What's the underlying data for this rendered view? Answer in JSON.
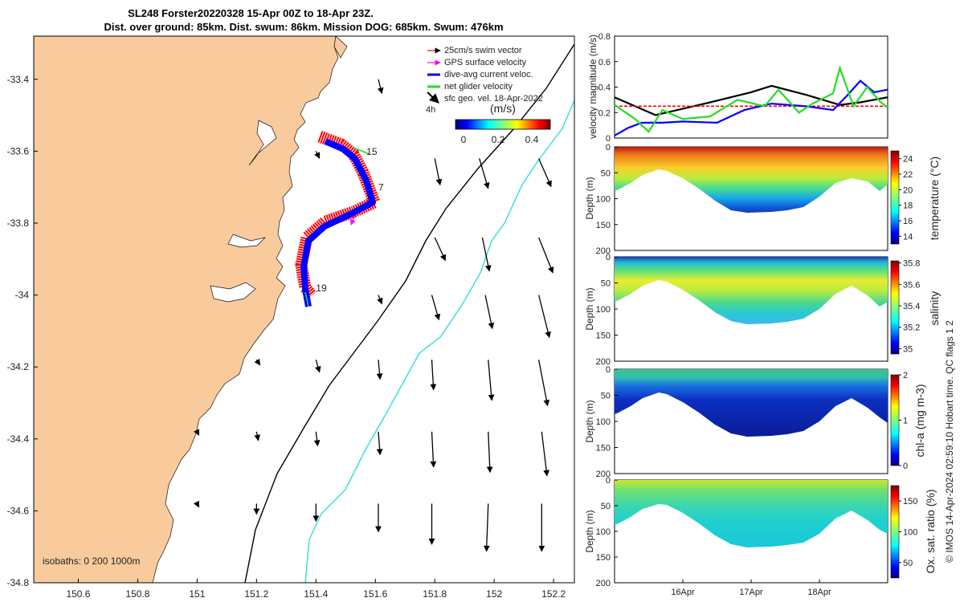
{
  "title": {
    "line1": "SL248 Forster20220328 15-Apr 00Z to 18-Apr 23Z.",
    "line2": "Dist. over ground: 85km. Dist. swum: 86km. Mission DOG: 685km. Swum: 476km"
  },
  "colors": {
    "land": "#f9cb9c",
    "swim": "#ff0000",
    "gps": "#ff00ff",
    "dive_avg": "#0000ff",
    "net": "#22dd22",
    "geo": "#000000",
    "isobath_200": "#000000",
    "isobath_1000": "#33dddd"
  },
  "chart_data": [
    {
      "type": "map",
      "name": "glider track map",
      "xlabel": "",
      "ylabel": "",
      "xlim": [
        150.45,
        152.27
      ],
      "ylim": [
        -34.8,
        -33.28
      ],
      "x_ticks": [
        150.6,
        150.8,
        151,
        151.2,
        151.4,
        151.6,
        151.8,
        152,
        152.2
      ],
      "x_tick_labels": [
        "150.6",
        "150.8",
        "151",
        "151.2",
        "151.4",
        "151.6",
        "151.8",
        "152",
        "152.2"
      ],
      "y_ticks": [
        -33.4,
        -33.6,
        -33.8,
        -34,
        -34.2,
        -34.4,
        -34.6,
        -34.8
      ],
      "y_tick_labels": [
        "-33.4",
        "-33.6",
        "-33.8",
        "-34",
        "-34.2",
        "-34.4",
        "-34.6",
        "-34.8"
      ],
      "legend": [
        "25cm/s swim vector",
        "GPS surface velocity",
        "dive-avg current veloc.",
        "net glider velocity",
        "sfc geo. vel. 18-Apr-2022"
      ],
      "legend_note": "4h",
      "colorbar": {
        "label": "(m/s)",
        "ticks": [
          "0",
          "0.2",
          "0.4"
        ],
        "range": [
          0,
          0.5
        ]
      },
      "isobaths_label": "isobaths: 0   200  1000m",
      "track": [
        [
          151.4,
          -33.57
        ],
        [
          151.45,
          -33.58
        ],
        [
          151.5,
          -33.6
        ],
        [
          151.55,
          -33.67
        ],
        [
          151.58,
          -33.74
        ],
        [
          151.5,
          -33.78
        ],
        [
          151.42,
          -33.82
        ],
        [
          151.36,
          -33.87
        ],
        [
          151.35,
          -33.93
        ],
        [
          151.37,
          -33.99
        ],
        [
          151.37,
          -34.02
        ]
      ],
      "track_labels": [
        {
          "text": "15",
          "lon": 151.57,
          "lat": -33.61
        },
        {
          "text": "7",
          "lon": 151.61,
          "lat": -33.71
        },
        {
          "text": "19",
          "lon": 151.4,
          "lat": -33.99
        }
      ],
      "gps_arrow": {
        "lon": 151.53,
        "lat": -33.78,
        "u": -0.02,
        "v": -0.05
      },
      "geo_vectors": [
        {
          "lon": 151.61,
          "lat": -33.4,
          "u": 0.02,
          "v": -0.08
        },
        {
          "lon": 151.4,
          "lat": -33.6,
          "u": 0.02,
          "v": -0.04
        },
        {
          "lon": 151.8,
          "lat": -33.62,
          "u": 0.03,
          "v": -0.15
        },
        {
          "lon": 151.95,
          "lat": -33.62,
          "u": 0.05,
          "v": -0.17
        },
        {
          "lon": 152.15,
          "lat": -33.62,
          "u": 0.07,
          "v": -0.16
        },
        {
          "lon": 151.8,
          "lat": -33.84,
          "u": 0.06,
          "v": -0.13
        },
        {
          "lon": 151.96,
          "lat": -33.84,
          "u": 0.04,
          "v": -0.19
        },
        {
          "lon": 152.15,
          "lat": -33.84,
          "u": 0.08,
          "v": -0.2
        },
        {
          "lon": 151.61,
          "lat": -34.0,
          "u": 0.02,
          "v": -0.05
        },
        {
          "lon": 151.79,
          "lat": -34.0,
          "u": 0.04,
          "v": -0.14
        },
        {
          "lon": 151.97,
          "lat": -34.0,
          "u": 0.04,
          "v": -0.19
        },
        {
          "lon": 152.15,
          "lat": -34.0,
          "u": 0.06,
          "v": -0.24
        },
        {
          "lon": 151.2,
          "lat": -34.18,
          "u": 0.02,
          "v": -0.03
        },
        {
          "lon": 151.4,
          "lat": -34.18,
          "u": 0.02,
          "v": -0.07
        },
        {
          "lon": 151.61,
          "lat": -34.18,
          "u": 0.01,
          "v": -0.11
        },
        {
          "lon": 151.79,
          "lat": -34.18,
          "u": 0.01,
          "v": -0.17
        },
        {
          "lon": 151.98,
          "lat": -34.18,
          "u": 0.02,
          "v": -0.23
        },
        {
          "lon": 152.15,
          "lat": -34.18,
          "u": 0.05,
          "v": -0.26
        },
        {
          "lon": 151.0,
          "lat": -34.38,
          "u": 0.01,
          "v": -0.02
        },
        {
          "lon": 151.2,
          "lat": -34.38,
          "u": 0.01,
          "v": -0.05
        },
        {
          "lon": 151.4,
          "lat": -34.38,
          "u": 0.01,
          "v": -0.08
        },
        {
          "lon": 151.61,
          "lat": -34.38,
          "u": 0.01,
          "v": -0.13
        },
        {
          "lon": 151.79,
          "lat": -34.38,
          "u": 0.01,
          "v": -0.2
        },
        {
          "lon": 151.98,
          "lat": -34.38,
          "u": 0.01,
          "v": -0.23
        },
        {
          "lon": 152.16,
          "lat": -34.38,
          "u": 0.03,
          "v": -0.25
        },
        {
          "lon": 151.0,
          "lat": -34.58,
          "u": 0.01,
          "v": -0.02
        },
        {
          "lon": 151.2,
          "lat": -34.58,
          "u": 0.0,
          "v": -0.06
        },
        {
          "lon": 151.4,
          "lat": -34.58,
          "u": 0.0,
          "v": -0.1
        },
        {
          "lon": 151.61,
          "lat": -34.58,
          "u": 0.0,
          "v": -0.16
        },
        {
          "lon": 151.79,
          "lat": -34.58,
          "u": 0.0,
          "v": -0.23
        },
        {
          "lon": 151.98,
          "lat": -34.58,
          "u": -0.01,
          "v": -0.27
        },
        {
          "lon": 152.16,
          "lat": -34.58,
          "u": 0.0,
          "v": -0.27
        }
      ]
    },
    {
      "type": "line",
      "name": "velocity magnitude",
      "ylabel": "velocity magnitude (m/s)",
      "ylim": [
        0,
        0.8
      ],
      "y_ticks": [
        "0",
        "0.2",
        "0.4",
        "0.6",
        "0.8"
      ],
      "xlim": [
        15.0,
        19.0
      ],
      "series": [
        {
          "name": "sfc geo",
          "color": "#000000",
          "x": [
            15.0,
            15.6,
            16.4,
            17.0,
            17.3,
            17.8,
            18.3,
            18.6,
            19.0
          ],
          "values": [
            0.32,
            0.18,
            0.28,
            0.36,
            0.41,
            0.34,
            0.26,
            0.28,
            0.32
          ]
        },
        {
          "name": "swim",
          "color": "#ff0000",
          "x": [
            15.0,
            19.0
          ],
          "values": [
            0.25,
            0.25
          ]
        },
        {
          "name": "dive-avg",
          "color": "#0000ff",
          "x": [
            15.0,
            15.2,
            15.4,
            15.7,
            16.0,
            16.5,
            16.9,
            17.3,
            17.8,
            18.2,
            18.4,
            18.6,
            18.8,
            19.0
          ],
          "values": [
            0.02,
            0.08,
            0.12,
            0.12,
            0.13,
            0.12,
            0.22,
            0.27,
            0.25,
            0.22,
            0.33,
            0.45,
            0.36,
            0.38
          ]
        },
        {
          "name": "net",
          "color": "#22dd22",
          "x": [
            15.0,
            15.3,
            15.5,
            15.7,
            16.0,
            16.4,
            16.8,
            17.2,
            17.4,
            17.7,
            17.9,
            18.2,
            18.3,
            18.5,
            18.7,
            18.9,
            19.0
          ],
          "values": [
            0.26,
            0.15,
            0.05,
            0.22,
            0.15,
            0.17,
            0.3,
            0.25,
            0.38,
            0.2,
            0.27,
            0.35,
            0.55,
            0.25,
            0.4,
            0.28,
            0.24
          ]
        }
      ]
    },
    {
      "type": "heatmap",
      "name": "temperature section",
      "ylabel": "Depth (m)",
      "ylim": [
        0,
        200
      ],
      "y_ticks": [
        "0",
        "50",
        "100",
        "150",
        "200"
      ],
      "colorbar_label": "temperature (°C)",
      "colorbar_ticks": [
        "14",
        "16",
        "18",
        "20",
        "22",
        "24"
      ],
      "colorbar_range": [
        13,
        25
      ]
    },
    {
      "type": "heatmap",
      "name": "salinity section",
      "ylabel": "Depth (m)",
      "ylim": [
        0,
        200
      ],
      "y_ticks": [
        "0",
        "50",
        "100",
        "150",
        "200"
      ],
      "colorbar_label": "salinity",
      "colorbar_ticks": [
        "35",
        "35.2",
        "35.4",
        "35.6",
        "35.8"
      ],
      "colorbar_range": [
        34.95,
        35.82
      ]
    },
    {
      "type": "heatmap",
      "name": "chlorophyll section",
      "ylabel": "Depth (m)",
      "ylim": [
        0,
        200
      ],
      "y_ticks": [
        "0",
        "50",
        "100",
        "150",
        "200"
      ],
      "colorbar_label": "chl-a (mg m-3)",
      "colorbar_ticks": [
        "0",
        "1",
        "2"
      ],
      "colorbar_range": [
        0,
        2
      ]
    },
    {
      "type": "heatmap",
      "name": "oxygen saturation section",
      "ylabel": "Depth (m)",
      "ylim": [
        0,
        200
      ],
      "y_ticks": [
        "0",
        "50",
        "100",
        "150",
        "200"
      ],
      "xlim": [
        15.0,
        19.0
      ],
      "x_ticks": [
        16,
        17,
        18
      ],
      "x_tick_labels": [
        "16Apr",
        "17Apr",
        "18Apr"
      ],
      "colorbar_label": "Ox. sat. ratio (%)",
      "colorbar_ticks": [
        "50",
        "100",
        "150"
      ],
      "colorbar_range": [
        25,
        175
      ]
    }
  ],
  "credit": "© IMOS 14-Apr-2024 02:59:10 Hobart time. QC flags 1  2"
}
